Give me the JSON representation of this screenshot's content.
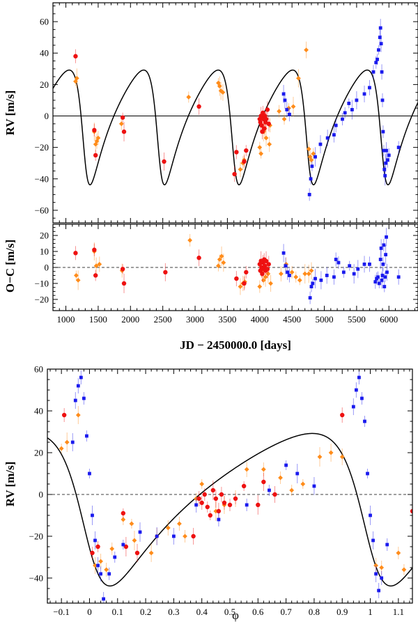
{
  "chart_data": [
    {
      "panel": "top",
      "type": "scatter",
      "xlabel": "",
      "ylabel": "RV [m/s]",
      "xlim": [
        800,
        6450
      ],
      "ylim": [
        -68,
        72
      ],
      "yticks": [
        -60,
        -40,
        -20,
        0,
        20,
        40,
        60
      ],
      "model_curve": {
        "name": "Keplerian fit",
        "color": "#000000",
        "period": 1153,
        "t_peri": 1290,
        "K": 36.5,
        "e": 0.4,
        "omega_deg": 120,
        "offset": 0
      },
      "series": [
        {
          "name": "orange diamonds",
          "color": "#ff8c1a",
          "marker": "diamond",
          "x": [
            1150,
            1170,
            1440,
            1460,
            1480,
            1500,
            1860,
            2900,
            3360,
            3380,
            3400,
            3430,
            3700,
            3740,
            3760,
            4000,
            4020,
            4060,
            4080,
            4100,
            4150,
            4160,
            4300,
            4380,
            4450,
            4520,
            4600,
            4720,
            4760,
            4780,
            4800,
            4830
          ],
          "y": [
            22,
            24,
            -10,
            -18,
            -16,
            -14,
            -5,
            12,
            21,
            19,
            16,
            15,
            -34,
            -30,
            -28,
            -20,
            -24,
            -10,
            -8,
            -14,
            -18,
            -6,
            3,
            -2,
            5,
            6,
            24,
            42,
            -21,
            -26,
            -28,
            -24
          ]
        },
        {
          "name": "red circles",
          "color": "#ee1111",
          "marker": "circle",
          "x": [
            1150,
            1440,
            1460,
            1880,
            1900,
            2520,
            3060,
            3610,
            3640,
            3760,
            3790,
            4000,
            4010,
            4020,
            4030,
            4040,
            4050,
            4060,
            4070,
            4080,
            4090,
            4100,
            4120,
            4140
          ],
          "y": [
            38,
            -9,
            -25,
            -1,
            -10,
            -29,
            6,
            -37,
            -23,
            -29,
            -22,
            -2,
            -4,
            0,
            -6,
            -10,
            2,
            -2,
            -8,
            0,
            -4,
            -2,
            4,
            -5
          ]
        },
        {
          "name": "blue squares",
          "color": "#1a1aee",
          "marker": "square",
          "x": [
            4370,
            4390,
            4420,
            4460,
            4770,
            4790,
            4810,
            4860,
            4940,
            5050,
            5150,
            5180,
            5280,
            5320,
            5380,
            5430,
            5500,
            5620,
            5700,
            5760,
            5800,
            5820,
            5840,
            5860,
            5870,
            5880,
            5890,
            5900,
            5910,
            5920,
            5930,
            5940,
            5950,
            5960,
            5980,
            6000,
            6150
          ],
          "y": [
            14,
            10,
            4,
            1,
            -50,
            -40,
            -32,
            -26,
            -18,
            -14,
            -12,
            -6,
            -2,
            2,
            8,
            4,
            10,
            14,
            18,
            28,
            34,
            36,
            42,
            50,
            56,
            46,
            28,
            10,
            -10,
            -22,
            -34,
            -38,
            -30,
            -22,
            -28,
            -25,
            -20
          ]
        }
      ]
    },
    {
      "panel": "middle",
      "type": "scatter",
      "xlabel": "JD − 2450000.0 [days]",
      "ylabel": "O−C [m/s]",
      "xlim": [
        800,
        6450
      ],
      "ylim": [
        -27,
        27
      ],
      "xticks": [
        1000,
        1500,
        2000,
        2500,
        3000,
        3500,
        4000,
        4500,
        5000,
        5500,
        6000
      ],
      "yticks": [
        -20,
        -10,
        0,
        10,
        20
      ],
      "series": [
        {
          "name": "orange diamonds",
          "color": "#ff8c1a",
          "marker": "diamond",
          "x": [
            1160,
            1190,
            1440,
            1470,
            1520,
            1870,
            2920,
            3360,
            3380,
            3410,
            3440,
            3700,
            3740,
            3770,
            4000,
            4030,
            4060,
            4090,
            4130,
            4170,
            4330,
            4410,
            4500,
            4560,
            4620,
            4700,
            4760,
            4800
          ],
          "y": [
            -5,
            -8,
            10,
            1,
            2,
            -2,
            17,
            1,
            5,
            7,
            3,
            -12,
            -10,
            -9,
            -12,
            -3,
            -8,
            -6,
            -4,
            -10,
            -4,
            2,
            -3,
            -6,
            -8,
            -4,
            -4,
            -2
          ]
        },
        {
          "name": "red circles",
          "color": "#ee1111",
          "marker": "circle",
          "x": [
            1150,
            1440,
            1460,
            1880,
            1900,
            2540,
            3060,
            3640,
            3760,
            3790,
            4000,
            4010,
            4020,
            4030,
            4040,
            4050,
            4060,
            4070,
            4080,
            4090,
            4100,
            4120,
            4140
          ],
          "y": [
            9,
            11,
            -5,
            -1,
            -10,
            -3,
            6,
            -7,
            -10,
            -3,
            2,
            -2,
            4,
            0,
            -4,
            3,
            -1,
            5,
            1,
            -2,
            4,
            -1,
            2
          ]
        },
        {
          "name": "blue squares",
          "color": "#1a1aee",
          "marker": "square",
          "x": [
            4370,
            4400,
            4430,
            4460,
            4780,
            4800,
            4820,
            4860,
            4950,
            5040,
            5150,
            5180,
            5220,
            5300,
            5390,
            5460,
            5520,
            5620,
            5700,
            5790,
            5810,
            5830,
            5850,
            5870,
            5880,
            5890,
            5900,
            5910,
            5920,
            5930,
            5940,
            5950,
            5960,
            5970,
            6150
          ],
          "y": [
            9,
            1,
            -3,
            -5,
            -19,
            -12,
            -10,
            -7,
            -8,
            -5,
            -6,
            5,
            3,
            -3,
            1,
            -4,
            -1,
            2,
            2,
            -9,
            -7,
            -6,
            -10,
            5,
            12,
            -8,
            -5,
            2,
            14,
            -12,
            -6,
            8,
            19,
            -3,
            -6
          ]
        }
      ]
    },
    {
      "panel": "bottom",
      "type": "scatter",
      "xlabel": "φ",
      "ylabel": "RV [m/s]",
      "xlim": [
        -0.15,
        1.15
      ],
      "ylim": [
        -52,
        60
      ],
      "xticks": [
        -0.1,
        0.0,
        0.1,
        0.2,
        0.3,
        0.4,
        0.5,
        0.6,
        0.7,
        0.8,
        0.9,
        1.0,
        1.1
      ],
      "yticks": [
        -40,
        -20,
        0,
        20,
        40,
        60
      ],
      "model_curve": {
        "name": "phased Keplerian fit",
        "color": "#000000",
        "K": 36.5,
        "e": 0.4,
        "omega_deg": 120,
        "offset": 0
      },
      "series": [
        {
          "name": "orange diamonds",
          "color": "#ff8c1a",
          "marker": "diamond",
          "x": [
            -0.1,
            -0.08,
            -0.04,
            0.02,
            0.04,
            0.06,
            0.08,
            0.12,
            0.15,
            0.16,
            0.22,
            0.24,
            0.28,
            0.32,
            0.34,
            0.38,
            0.4,
            0.45,
            0.48,
            0.52,
            0.56,
            0.62,
            0.68,
            0.72,
            0.76,
            0.82,
            0.86,
            0.9,
            1.02,
            1.04,
            1.1,
            1.12
          ],
          "y": [
            22,
            25,
            38,
            -34,
            -32,
            -36,
            -26,
            -12,
            -14,
            -22,
            -28,
            -20,
            -16,
            -14,
            -20,
            -2,
            5,
            -8,
            -5,
            -2,
            12,
            12,
            8,
            2,
            5,
            18,
            20,
            18,
            -34,
            -35,
            -28,
            -36
          ]
        },
        {
          "name": "red circles",
          "color": "#ee1111",
          "marker": "circle",
          "x": [
            -0.09,
            0.01,
            0.03,
            0.12,
            0.13,
            0.17,
            0.37,
            0.39,
            0.4,
            0.41,
            0.42,
            0.43,
            0.44,
            0.45,
            0.46,
            0.47,
            0.48,
            0.5,
            0.52,
            0.55,
            0.6,
            0.62,
            0.66,
            0.9,
            1.15
          ],
          "y": [
            38,
            -28,
            -25,
            -9,
            -25,
            -28,
            -20,
            -2,
            -4,
            0,
            -6,
            -10,
            2,
            -2,
            -8,
            0,
            -4,
            -5,
            -2,
            4,
            -5,
            6,
            0,
            38,
            -8
          ]
        },
        {
          "name": "blue squares",
          "color": "#1a1aee",
          "marker": "square",
          "x": [
            -0.06,
            -0.05,
            -0.04,
            -0.03,
            -0.02,
            -0.01,
            0.0,
            0.01,
            0.02,
            0.03,
            0.04,
            0.05,
            0.07,
            0.09,
            0.12,
            0.18,
            0.24,
            0.3,
            0.38,
            0.46,
            0.56,
            0.64,
            0.7,
            0.74,
            0.8,
            0.94,
            0.95,
            0.96,
            0.97,
            0.98,
            0.99,
            1.0,
            1.01,
            1.02,
            1.03,
            1.04,
            1.06
          ],
          "y": [
            25,
            45,
            52,
            56,
            46,
            28,
            10,
            -10,
            -22,
            -34,
            -38,
            -50,
            -38,
            -30,
            -24,
            -18,
            -20,
            -20,
            -5,
            -12,
            -5,
            2,
            14,
            10,
            4,
            42,
            50,
            56,
            46,
            35,
            10,
            -10,
            -22,
            -38,
            -46,
            -40,
            -24
          ]
        }
      ]
    }
  ]
}
